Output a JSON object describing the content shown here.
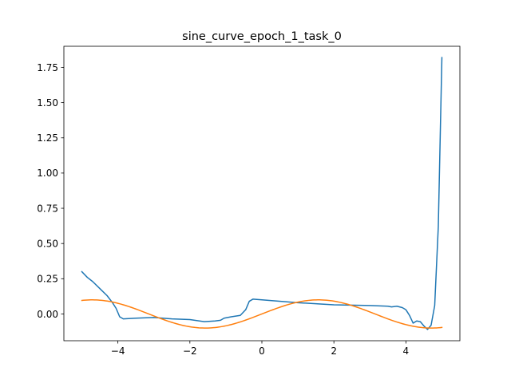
{
  "chart_data": {
    "type": "line",
    "title": "sine_curve_epoch_1_task_0",
    "xlabel": "",
    "ylabel": "",
    "xlim": [
      -5.5,
      5.5
    ],
    "ylim": [
      -0.19,
      1.9
    ],
    "xticks": [
      -4,
      -2,
      0,
      2,
      4
    ],
    "xtick_labels": [
      "−4",
      "−2",
      "0",
      "2",
      "4"
    ],
    "yticks": [
      0.0,
      0.25,
      0.5,
      0.75,
      1.0,
      1.25,
      1.5,
      1.75
    ],
    "ytick_labels": [
      "0.00",
      "0.25",
      "0.50",
      "0.75",
      "1.00",
      "1.25",
      "1.50",
      "1.75"
    ],
    "grid": false,
    "series": [
      {
        "color": "#1f77b4",
        "x": [
          -5.0,
          -4.85,
          -4.7,
          -4.5,
          -4.3,
          -4.15,
          -4.05,
          -3.95,
          -3.85,
          -3.5,
          -3.0,
          -2.5,
          -2.0,
          -1.6,
          -1.3,
          -1.15,
          -1.05,
          -0.85,
          -0.6,
          -0.45,
          -0.35,
          -0.25,
          0.0,
          1.0,
          2.0,
          3.0,
          3.5,
          3.6,
          3.75,
          3.9,
          4.0,
          4.05,
          4.1,
          4.2,
          4.3,
          4.4,
          4.5,
          4.6,
          4.7,
          4.8,
          4.9,
          5.0
        ],
        "y": [
          0.3,
          0.26,
          0.23,
          0.18,
          0.13,
          0.08,
          0.04,
          -0.02,
          -0.035,
          -0.03,
          -0.025,
          -0.035,
          -0.04,
          -0.055,
          -0.05,
          -0.045,
          -0.03,
          -0.02,
          -0.01,
          0.03,
          0.09,
          0.105,
          0.1,
          0.08,
          0.065,
          0.06,
          0.055,
          0.05,
          0.055,
          0.045,
          0.03,
          0.01,
          -0.01,
          -0.065,
          -0.05,
          -0.055,
          -0.085,
          -0.11,
          -0.08,
          0.06,
          0.62,
          1.82
        ]
      },
      {
        "color": "#ff7f0e",
        "function": "0.1*sin(x)",
        "x_range": [
          -5.0,
          5.0
        ]
      }
    ]
  }
}
